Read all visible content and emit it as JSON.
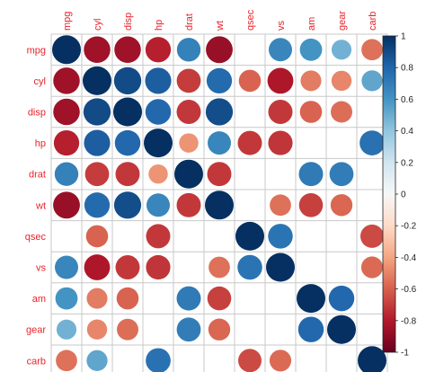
{
  "chart_data": {
    "type": "heatmap",
    "subtype": "correlation-circles",
    "title": "",
    "variables": [
      "mpg",
      "cyl",
      "disp",
      "hp",
      "drat",
      "wt",
      "qsec",
      "vs",
      "am",
      "gear",
      "carb"
    ],
    "matrix": [
      [
        1.0,
        -0.85,
        -0.85,
        -0.78,
        0.68,
        -0.87,
        null,
        0.66,
        0.6,
        0.48,
        -0.55
      ],
      [
        -0.85,
        1.0,
        0.9,
        0.83,
        -0.7,
        0.78,
        -0.59,
        -0.81,
        -0.52,
        -0.49,
        0.53
      ],
      [
        -0.85,
        0.9,
        1.0,
        0.79,
        -0.71,
        0.89,
        null,
        -0.71,
        -0.59,
        -0.56,
        null
      ],
      [
        -0.78,
        0.83,
        0.79,
        1.0,
        -0.45,
        0.66,
        -0.71,
        -0.72,
        null,
        null,
        0.75
      ],
      [
        0.68,
        -0.7,
        -0.71,
        -0.45,
        1.0,
        -0.71,
        null,
        null,
        0.71,
        0.7,
        null
      ],
      [
        -0.87,
        0.78,
        0.89,
        0.66,
        -0.71,
        1.0,
        null,
        -0.55,
        -0.69,
        -0.58,
        null
      ],
      [
        null,
        -0.59,
        null,
        -0.71,
        null,
        null,
        1.0,
        0.74,
        null,
        null,
        -0.66
      ],
      [
        0.66,
        -0.81,
        -0.71,
        -0.72,
        null,
        -0.55,
        0.74,
        1.0,
        null,
        null,
        -0.57
      ],
      [
        0.6,
        -0.52,
        -0.59,
        null,
        0.71,
        -0.69,
        null,
        null,
        1.0,
        0.79,
        null
      ],
      [
        0.48,
        -0.49,
        -0.56,
        null,
        0.7,
        -0.58,
        null,
        null,
        0.79,
        1.0,
        null
      ],
      [
        -0.55,
        0.53,
        null,
        0.75,
        null,
        null,
        -0.66,
        -0.57,
        null,
        null,
        1.0
      ]
    ],
    "colorbar": {
      "range": [
        -1,
        1
      ],
      "ticks": [
        "1",
        "0.8",
        "0.6",
        "0.4",
        "0.2",
        "0",
        "-0.2",
        "-0.4",
        "-0.6",
        "-0.8",
        "-1"
      ]
    },
    "colors": {
      "negative_strong": "#67001f",
      "neutral": "#f7f7f7",
      "positive_strong": "#053061",
      "label": "#e8232a",
      "grid": "#c8c8c8"
    },
    "grid": true,
    "legend_placement": "right"
  }
}
